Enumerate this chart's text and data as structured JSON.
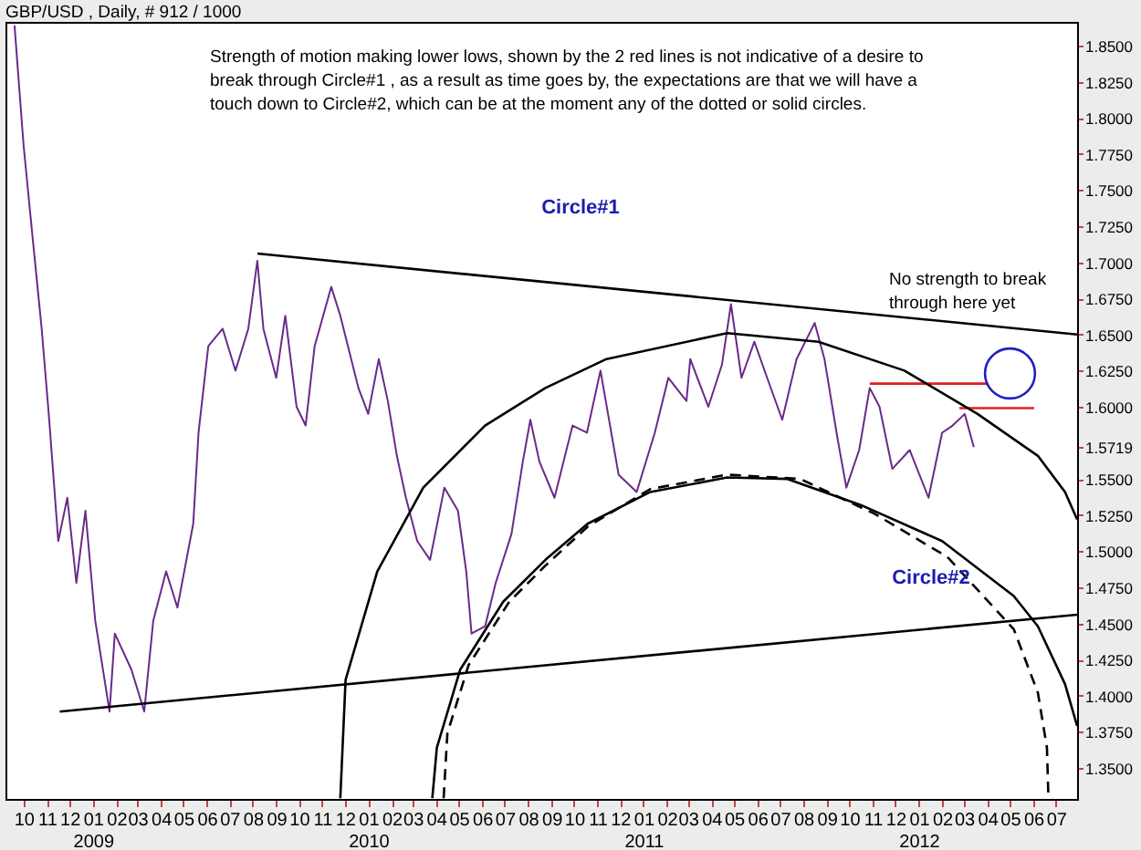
{
  "chart_data": {
    "type": "line",
    "title": "GBP/USD , Daily, # 912 / 1000",
    "annotations": [
      "Strength of motion making lower lows, shown by the 2 red lines is not indicative of a desire to break through Circle#1 , as a result as time goes by, the expectations are that we will have a touch down to Circle#2, which can be at the moment any of the dotted or solid circles.",
      "No strength to break through here yet",
      "Circle#1",
      "Circle#2"
    ],
    "x": [
      "2008-09-19",
      "2008-10-01",
      "2008-10-13",
      "2008-10-25",
      "2008-11-04",
      "2008-11-16",
      "2008-11-28",
      "2008-12-10",
      "2008-12-22",
      "2009-01-04",
      "2009-01-23",
      "2009-01-30",
      "2009-02-21",
      "2009-03-10",
      "2009-03-22",
      "2009-04-08",
      "2009-04-23",
      "2009-05-14",
      "2009-05-21",
      "2009-06-03",
      "2009-06-22",
      "2009-07-09",
      "2009-07-26",
      "2009-08-07",
      "2009-08-15",
      "2009-09-01",
      "2009-09-13",
      "2009-09-28",
      "2009-10-10",
      "2009-10-22",
      "2009-11-13",
      "2009-11-25",
      "2009-12-07",
      "2009-12-19",
      "2010-01-01",
      "2010-01-15",
      "2010-01-27",
      "2010-02-08",
      "2010-02-20",
      "2010-03-07",
      "2010-03-24",
      "2010-04-12",
      "2010-04-30",
      "2010-05-11",
      "2010-05-18",
      "2010-06-05",
      "2010-06-19",
      "2010-07-10",
      "2010-07-25",
      "2010-08-04",
      "2010-08-16",
      "2010-09-05",
      "2010-09-29",
      "2010-10-18",
      "2010-11-05",
      "2010-11-29",
      "2010-12-23",
      "2011-01-16",
      "2011-02-03",
      "2011-02-27",
      "2011-03-04",
      "2011-03-28",
      "2011-04-15",
      "2011-04-27",
      "2011-05-11",
      "2011-05-28",
      "2011-06-14",
      "2011-07-04",
      "2011-07-23",
      "2011-08-16",
      "2011-08-29",
      "2011-09-15",
      "2011-09-27",
      "2011-10-14",
      "2011-10-28",
      "2011-11-10",
      "2011-11-27",
      "2011-12-20",
      "2012-01-14",
      "2012-02-01",
      "2012-02-15",
      "2012-03-02",
      "2012-03-14"
    ],
    "series": [
      {
        "color": "#6a2a8a",
        "values": [
          1.864,
          1.781,
          1.717,
          1.654,
          1.591,
          1.507,
          1.537,
          1.478,
          1.528,
          1.452,
          1.389,
          1.443,
          1.418,
          1.389,
          1.452,
          1.486,
          1.461,
          1.519,
          1.582,
          1.642,
          1.654,
          1.625,
          1.654,
          1.701,
          1.654,
          1.62,
          1.663,
          1.6,
          1.587,
          1.642,
          1.683,
          1.663,
          1.638,
          1.613,
          1.595,
          1.633,
          1.604,
          1.566,
          1.537,
          1.507,
          1.494,
          1.544,
          1.528,
          1.486,
          1.443,
          1.448,
          1.478,
          1.512,
          1.562,
          1.591,
          1.562,
          1.537,
          1.587,
          1.582,
          1.625,
          1.553,
          1.541,
          1.582,
          1.62,
          1.604,
          1.633,
          1.6,
          1.629,
          1.671,
          1.62,
          1.645,
          1.62,
          1.591,
          1.633,
          1.658,
          1.633,
          1.579,
          1.544,
          1.57,
          1.613,
          1.6,
          1.557,
          1.57,
          1.537,
          1.582,
          1.587,
          1.595,
          1.572
        ]
      },
      {
        "type": "line",
        "color": "#000000",
        "x": [
          "2009-08-07",
          "2012-07-29"
        ],
        "values": [
          1.706,
          1.65
        ]
      },
      {
        "type": "line",
        "color": "#000000",
        "x": [
          "2008-11-18",
          "2012-07-29"
        ],
        "values": [
          1.389,
          1.456
        ]
      },
      {
        "type": "line",
        "color": "#e02020",
        "x": [
          "2011-10-28",
          "2012-04-02"
        ],
        "values": [
          1.616,
          1.616
        ]
      },
      {
        "type": "line",
        "color": "#e02020",
        "x": [
          "2012-02-24",
          "2012-06-02"
        ],
        "values": [
          1.599,
          1.599
        ]
      },
      {
        "type": "line",
        "color": "#000000",
        "x": [
          "2009-11-25",
          "2009-12-02",
          "2010-01-13",
          "2010-03-15",
          "2010-06-05",
          "2010-08-24",
          "2010-11-13",
          "2011-04-22",
          "2011-08-21",
          "2011-12-13",
          "2012-03-19",
          "2012-06-07",
          "2012-07-13",
          "2012-07-29"
        ],
        "values": [
          1.329,
          1.411,
          1.486,
          1.544,
          1.587,
          1.613,
          1.633,
          1.651,
          1.645,
          1.625,
          1.595,
          1.566,
          1.541,
          1.522
        ]
      },
      {
        "type": "line",
        "color": "#000000",
        "x": [
          "2010-03-27",
          "2010-04-02",
          "2010-05-03",
          "2010-06-29",
          "2010-08-24",
          "2010-10-19",
          "2011-01-10",
          "2011-04-22",
          "2011-07-11",
          "2011-10-16",
          "2012-02-01",
          "2012-05-06",
          "2012-06-07",
          "2012-07-13",
          "2012-07-29"
        ],
        "values": [
          1.329,
          1.364,
          1.418,
          1.465,
          1.494,
          1.519,
          1.541,
          1.551,
          1.55,
          1.532,
          1.507,
          1.469,
          1.448,
          1.408,
          1.379
        ]
      },
      {
        "type": "line",
        "color": "#000000",
        "line_style": "dashed",
        "x": [
          "2010-04-11",
          "2010-04-16",
          "2010-05-14",
          "2010-07-07",
          "2010-08-24",
          "2010-10-19",
          "2011-01-10",
          "2011-04-22",
          "2011-07-28",
          "2011-11-03",
          "2012-02-08",
          "2012-05-06",
          "2012-06-07",
          "2012-06-19",
          "2012-06-21"
        ],
        "values": [
          1.329,
          1.374,
          1.421,
          1.465,
          1.49,
          1.517,
          1.543,
          1.553,
          1.55,
          1.526,
          1.496,
          1.446,
          1.402,
          1.364,
          1.329
        ]
      },
      {
        "type": "scatter",
        "marker": "circle",
        "color": "#2020c0",
        "x": [
          "2012-05-01"
        ],
        "values": [
          1.623
        ]
      }
    ],
    "xlim": [
      "2008-09-07",
      "2012-07-29"
    ],
    "xticks": [
      {
        "value": "2008-10",
        "label": "10"
      },
      {
        "value": "2008-11",
        "label": "11"
      },
      {
        "value": "2008-12",
        "label": "12"
      },
      {
        "value": "2009-01",
        "label": "01\n2009"
      },
      {
        "value": "2009-02",
        "label": "02"
      },
      {
        "value": "2009-03",
        "label": "03"
      },
      {
        "value": "2009-04",
        "label": "04"
      },
      {
        "value": "2009-05",
        "label": "05"
      },
      {
        "value": "2009-06",
        "label": "06"
      },
      {
        "value": "2009-07",
        "label": "07"
      },
      {
        "value": "2009-08",
        "label": "08"
      },
      {
        "value": "2009-09",
        "label": "09"
      },
      {
        "value": "2009-10",
        "label": "10"
      },
      {
        "value": "2009-11",
        "label": "11"
      },
      {
        "value": "2009-12",
        "label": "12"
      },
      {
        "value": "2010-01",
        "label": "01\n2010"
      },
      {
        "value": "2010-02",
        "label": "02"
      },
      {
        "value": "2010-03",
        "label": "03"
      },
      {
        "value": "2010-04",
        "label": "04"
      },
      {
        "value": "2010-05",
        "label": "05"
      },
      {
        "value": "2010-06",
        "label": "06"
      },
      {
        "value": "2010-07",
        "label": "07"
      },
      {
        "value": "2010-08",
        "label": "08"
      },
      {
        "value": "2010-09",
        "label": "09"
      },
      {
        "value": "2010-10",
        "label": "10"
      },
      {
        "value": "2010-11",
        "label": "11"
      },
      {
        "value": "2010-12",
        "label": "12"
      },
      {
        "value": "2011-01",
        "label": "01\n2011"
      },
      {
        "value": "2011-02",
        "label": "02"
      },
      {
        "value": "2011-03",
        "label": "03"
      },
      {
        "value": "2011-04",
        "label": "04"
      },
      {
        "value": "2011-05",
        "label": "05"
      },
      {
        "value": "2011-06",
        "label": "06"
      },
      {
        "value": "2011-07",
        "label": "07"
      },
      {
        "value": "2011-08",
        "label": "08"
      },
      {
        "value": "2011-09",
        "label": "09"
      },
      {
        "value": "2011-10",
        "label": "10"
      },
      {
        "value": "2011-11",
        "label": "11"
      },
      {
        "value": "2011-12",
        "label": "12"
      },
      {
        "value": "2012-01",
        "label": "01\n2012"
      },
      {
        "value": "2012-02",
        "label": "02"
      },
      {
        "value": "2012-03",
        "label": "03"
      },
      {
        "value": "2012-04",
        "label": "04"
      },
      {
        "value": "2012-05",
        "label": "05"
      },
      {
        "value": "2012-06",
        "label": "06"
      },
      {
        "value": "2012-07",
        "label": "07"
      }
    ],
    "ylim": [
      1.3285,
      1.8664
    ],
    "yticks": [
      {
        "value": 1.35,
        "label": "1.3500"
      },
      {
        "value": 1.375,
        "label": "1.3750"
      },
      {
        "value": 1.4,
        "label": "1.4000"
      },
      {
        "value": 1.425,
        "label": "1.4250"
      },
      {
        "value": 1.45,
        "label": "1.4500"
      },
      {
        "value": 1.475,
        "label": "1.4750"
      },
      {
        "value": 1.5,
        "label": "1.5000"
      },
      {
        "value": 1.525,
        "label": "1.5250"
      },
      {
        "value": 1.55,
        "label": "1.5500"
      },
      {
        "value": 1.5719,
        "label": "1.5719"
      },
      {
        "value": 1.6,
        "label": "1.6000"
      },
      {
        "value": 1.625,
        "label": "1.6250"
      },
      {
        "value": 1.65,
        "label": "1.6500"
      },
      {
        "value": 1.675,
        "label": "1.6750"
      },
      {
        "value": 1.7,
        "label": "1.7000"
      },
      {
        "value": 1.725,
        "label": "1.7250"
      },
      {
        "value": 1.75,
        "label": "1.7500"
      },
      {
        "value": 1.775,
        "label": "1.7750"
      },
      {
        "value": 1.8,
        "label": "1.8000"
      },
      {
        "value": 1.825,
        "label": "1.8250"
      },
      {
        "value": 1.85,
        "label": "1.8500"
      }
    ],
    "grid": false
  }
}
